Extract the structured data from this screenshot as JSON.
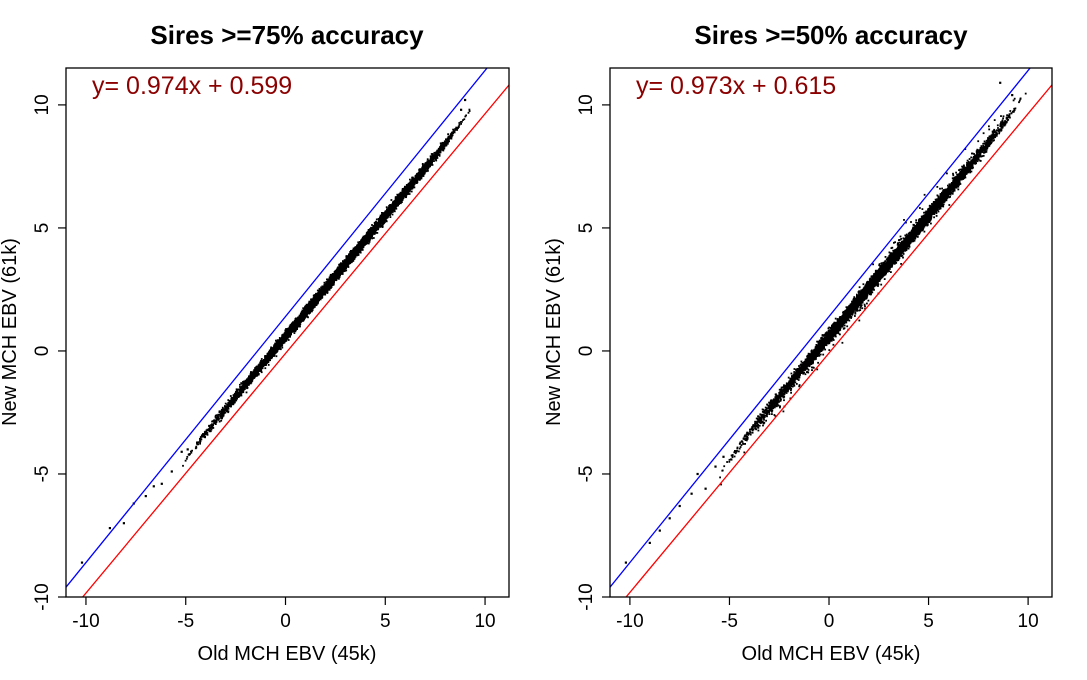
{
  "chart_data": [
    {
      "type": "scatter",
      "title": "Sires >=75% accuracy",
      "xlabel": "Old MCH EBV (45k)",
      "ylabel": "New MCH EBV (61k)",
      "xlim": [
        -11,
        11.2
      ],
      "ylim": [
        -10,
        11.5
      ],
      "xticks": [
        -10,
        -5,
        0,
        5,
        10
      ],
      "yticks": [
        -10,
        -5,
        0,
        5,
        10
      ],
      "equation": "y= 0.974x + 0.599",
      "regression": {
        "slope": 0.974,
        "intercept": 0.599,
        "color": "#ff0000"
      },
      "reference_line": {
        "slope": 1,
        "intercept": 0,
        "color": "#0000ff"
      },
      "cloud": {
        "center": [
          2.6,
          3.1
        ],
        "x_range": [
          -4.5,
          8.6
        ],
        "spread": 0.85,
        "outlier_rate": 0.0
      },
      "tail_points": [
        [
          -10.2,
          -8.6
        ],
        [
          -8.8,
          -7.2
        ],
        [
          -8.1,
          -7.0
        ],
        [
          -7.6,
          -6.2
        ],
        [
          -7.0,
          -5.9
        ],
        [
          -6.6,
          -5.5
        ],
        [
          -6.2,
          -5.4
        ],
        [
          -5.7,
          -4.9
        ],
        [
          -5.2,
          -4.1
        ],
        [
          -4.9,
          -4.0
        ],
        [
          9.0,
          10.2
        ],
        [
          8.8,
          9.8
        ]
      ],
      "point_color": "#000000"
    },
    {
      "type": "scatter",
      "title": "Sires >=50% accuracy",
      "xlabel": "Old MCH EBV (45k)",
      "ylabel": "New MCH EBV (61k)",
      "xlim": [
        -11,
        11.2
      ],
      "ylim": [
        -10,
        11.5
      ],
      "xticks": [
        -10,
        -5,
        0,
        5,
        10
      ],
      "yticks": [
        -10,
        -5,
        0,
        5,
        10
      ],
      "equation": "y= 0.973x + 0.615",
      "regression": {
        "slope": 0.973,
        "intercept": 0.615,
        "color": "#ff0000"
      },
      "reference_line": {
        "slope": 1,
        "intercept": 0,
        "color": "#0000ff"
      },
      "cloud": {
        "center": [
          2.5,
          3.0
        ],
        "x_range": [
          -4.5,
          9.0
        ],
        "spread": 1.05,
        "outlier_rate": 0.03
      },
      "tail_points": [
        [
          -10.2,
          -8.6
        ],
        [
          -9.0,
          -7.8
        ],
        [
          -8.5,
          -7.3
        ],
        [
          -8.0,
          -6.8
        ],
        [
          -7.5,
          -6.3
        ],
        [
          -6.9,
          -5.8
        ],
        [
          -6.6,
          -5.0
        ],
        [
          -6.2,
          -5.6
        ],
        [
          -5.7,
          -4.7
        ],
        [
          -5.3,
          -4.3
        ],
        [
          9.2,
          10.4
        ],
        [
          8.6,
          10.9
        ]
      ],
      "point_color": "#000000"
    }
  ],
  "colors": {
    "equation": "#8b0000",
    "axis": "#000000"
  }
}
